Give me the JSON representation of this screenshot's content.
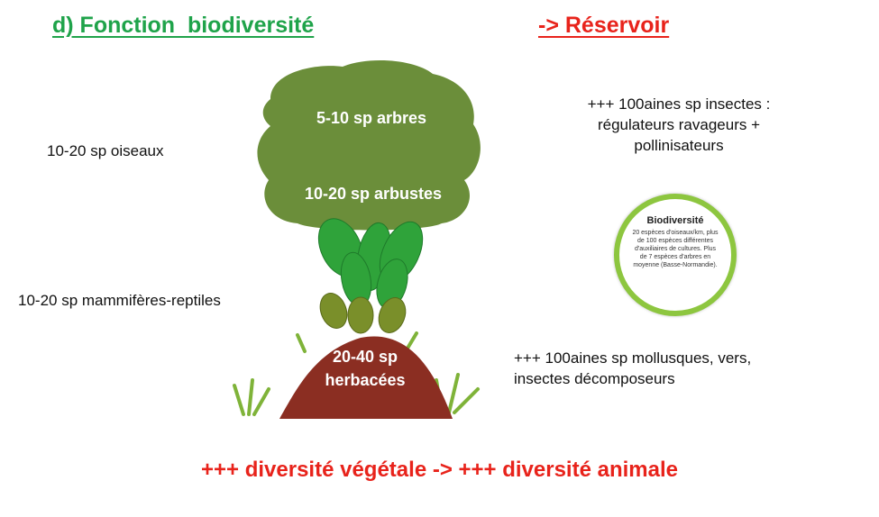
{
  "header": {
    "title": "d) Fonction  biodiversité",
    "subtitle": "-> Réservoir"
  },
  "tree": {
    "crown_top": "5-10 sp arbres",
    "crown_bottom": "10-20 sp arbustes",
    "mound_line1": "20-40 sp",
    "mound_line2": "herbacées"
  },
  "left": {
    "birds": "10-20 sp oiseaux",
    "mammals": "10-20 sp mammifères-reptiles"
  },
  "right": {
    "insects": [
      "+++ 100aines sp insectes :",
      "régulateurs ravageurs +",
      "pollinisateurs"
    ],
    "decomposers": [
      "+++ 100aines sp mollusques, vers,",
      "insectes décomposeurs"
    ]
  },
  "badge": {
    "title": "Biodiversité",
    "text": "20 espèces d'oiseaux/km, plus de 100 espèces différentes d'auxiliaires de cultures. Plus de 7 espèces d'arbres en moyenne (Basse-Normandie)."
  },
  "footer": {
    "conclusion": "+++ diversité végétale -> +++ diversité animale"
  },
  "colors": {
    "title_green": "#1fa34a",
    "accent_red": "#e8231b",
    "crown": "#6b8e3a",
    "fern": "#2fa33a",
    "mound": "#8b2e22",
    "grass": "#7fb339",
    "badge_ring": "#8dc63f"
  }
}
